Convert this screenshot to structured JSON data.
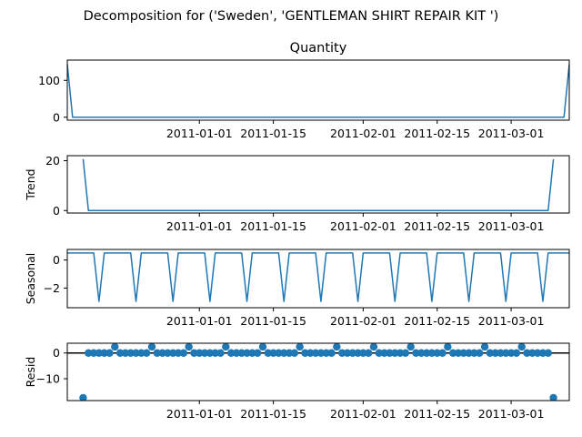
{
  "figure": {
    "suptitle": "Decomposition for ('Sweden', 'GENTLEMAN SHIRT REPAIR KIT ')"
  },
  "colors": {
    "series": "#1f77b4",
    "axis": "#000000",
    "background": "#ffffff"
  },
  "chart_data": [
    {
      "type": "line",
      "title": "Quantity",
      "ylabel": "",
      "x_start": "2010-12-07",
      "x_end": "2011-03-12",
      "xticks": [
        "2011-01-01",
        "2011-01-15",
        "2011-02-01",
        "2011-02-15",
        "2011-03-01"
      ],
      "ylim": [
        -8,
        155
      ],
      "yticks": [
        0,
        100
      ],
      "points": [
        [
          "2010-12-07",
          144
        ],
        [
          "2010-12-08",
          0
        ],
        [
          "2011-03-10",
          0
        ],
        [
          "2011-03-11",
          0
        ],
        [
          "2011-03-12",
          144
        ]
      ]
    },
    {
      "type": "line",
      "title": "",
      "ylabel": "Trend",
      "x_start": "2010-12-07",
      "x_end": "2011-03-12",
      "xticks": [
        "2011-01-01",
        "2011-01-15",
        "2011-02-01",
        "2011-02-15",
        "2011-03-01"
      ],
      "ylim": [
        -1,
        22
      ],
      "yticks": [
        0,
        20
      ],
      "points": [
        [
          "2010-12-10",
          20.6
        ],
        [
          "2010-12-11",
          0
        ],
        [
          "2011-03-08",
          0
        ],
        [
          "2011-03-09",
          20.6
        ]
      ]
    },
    {
      "type": "line",
      "title": "",
      "ylabel": "Seasonal",
      "x_start": "2010-12-07",
      "x_end": "2011-03-12",
      "xticks": [
        "2011-01-01",
        "2011-01-15",
        "2011-02-01",
        "2011-02-15",
        "2011-03-01"
      ],
      "ylim": [
        -3.4,
        0.75
      ],
      "yticks": [
        0,
        -2
      ],
      "period_days": 7,
      "pattern": [
        0.5,
        0.5,
        0.5,
        0.5,
        0.5,
        0.5,
        -2.95
      ],
      "pattern_start": "2010-12-07",
      "last_value_date": "2011-03-12"
    },
    {
      "type": "scatter",
      "title": "",
      "ylabel": "Resid",
      "x_start": "2010-12-07",
      "x_end": "2011-03-12",
      "xticks": [
        "2011-01-01",
        "2011-01-15",
        "2011-02-01",
        "2011-02-15",
        "2011-03-01"
      ],
      "ylim": [
        -18.5,
        3.8
      ],
      "yticks": [
        0,
        -10
      ],
      "zero_line": 0,
      "first_day": "2010-12-10",
      "last_day": "2011-03-09",
      "default_value": 0,
      "spike_value": 2.4,
      "spike_start": "2010-12-16",
      "spike_period_days": 7,
      "outliers": [
        [
          "2010-12-10",
          -17.4
        ],
        [
          "2011-03-09",
          -17.4
        ]
      ]
    }
  ]
}
